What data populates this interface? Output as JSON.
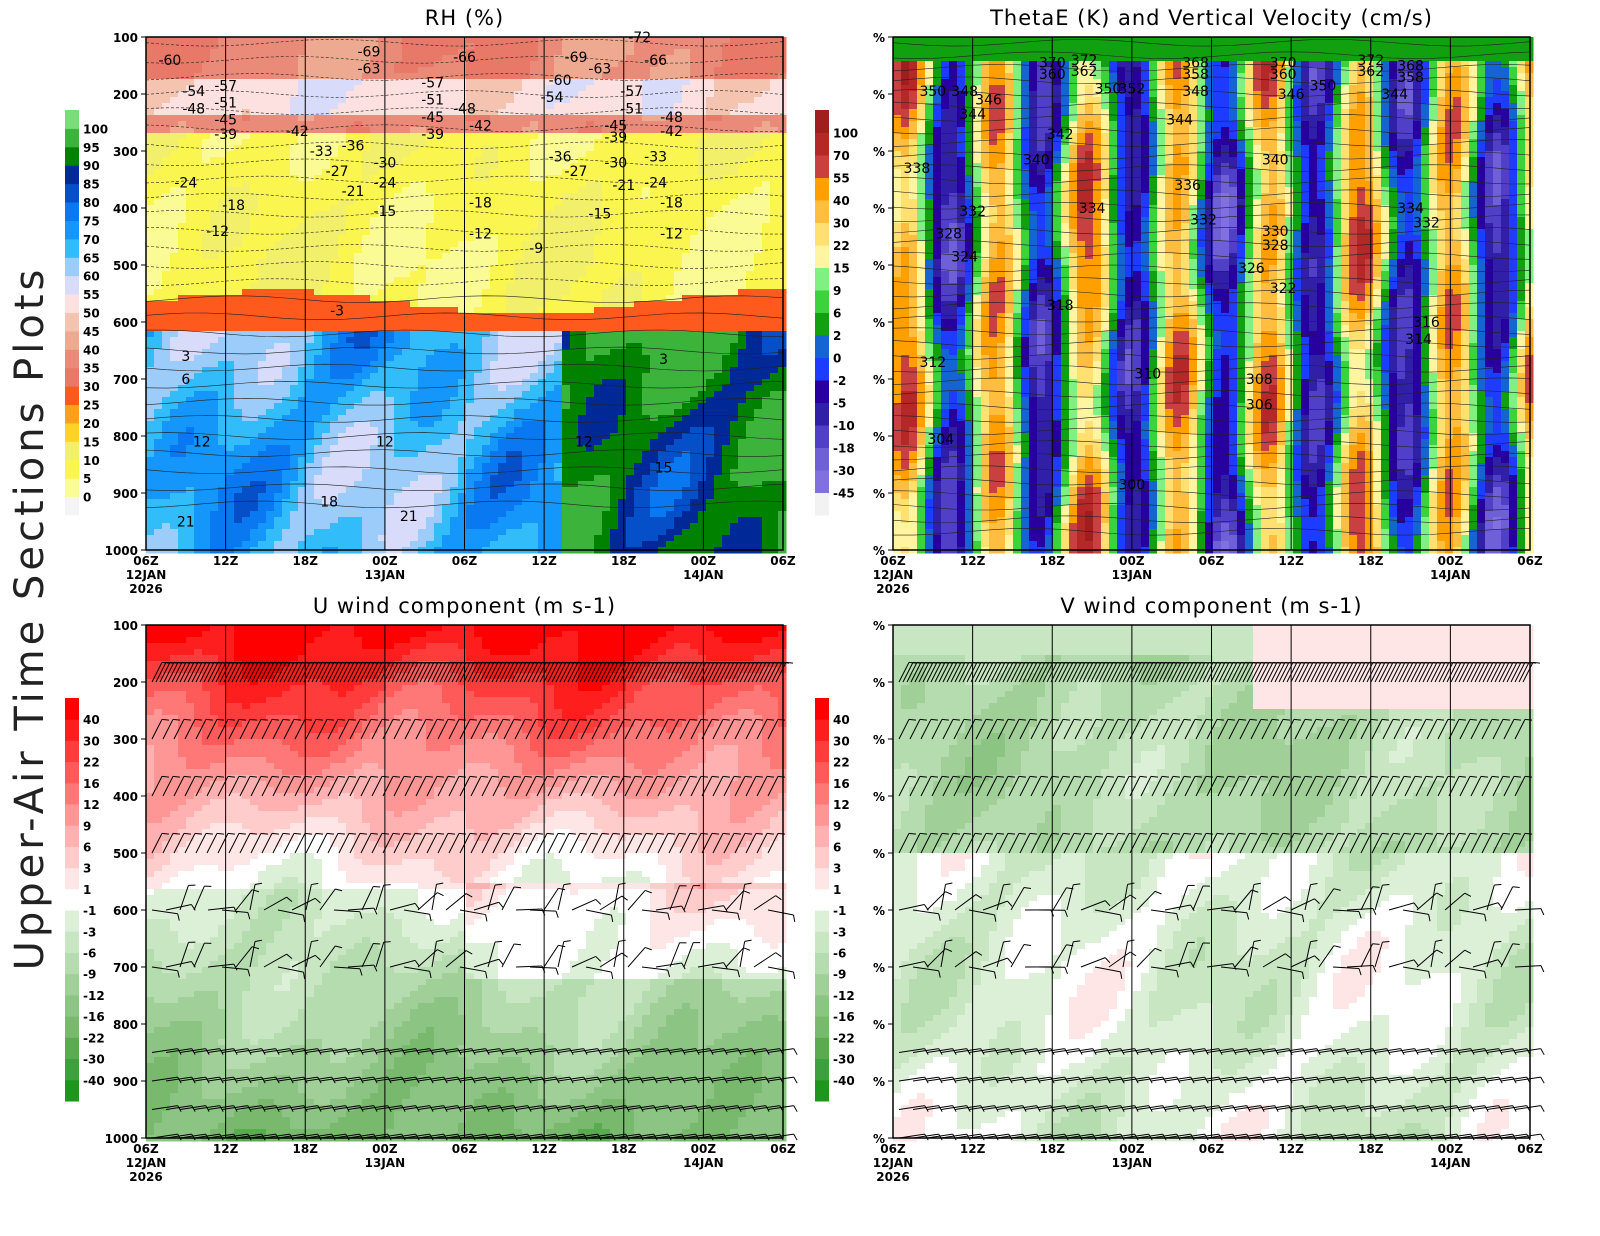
{
  "side_title": "Upper-Air Time Sections Plots",
  "chart_data": [
    {
      "type": "heatmap",
      "title": "RH (%)",
      "ylim": [
        1000,
        100
      ],
      "yticks": [
        "100",
        "200",
        "300",
        "400",
        "500",
        "600",
        "700",
        "800",
        "900",
        "1000"
      ],
      "xticks": [
        "06Z",
        "12Z",
        "18Z",
        "00Z",
        "06Z",
        "12Z",
        "18Z",
        "00Z",
        "06Z"
      ],
      "xsub": [
        {
          "i": 0,
          "lines": [
            "12JAN",
            "2026"
          ]
        },
        {
          "i": 3,
          "lines": [
            "13JAN"
          ]
        },
        {
          "i": 7,
          "lines": [
            "14JAN"
          ]
        }
      ],
      "colorbar": {
        "labels": [
          "0",
          "5",
          "10",
          "15",
          "20",
          "25",
          "30",
          "35",
          "40",
          "45",
          "50",
          "55",
          "60",
          "65",
          "70",
          "75",
          "80",
          "85",
          "90",
          "95",
          "100"
        ],
        "colors": [
          "#f4f4f4",
          "#fbfb96",
          "#fbf550",
          "#f2ef6a",
          "#ffd22a",
          "#ffa01c",
          "#ff5a1e",
          "#e87868",
          "#ea8a78",
          "#edaa90",
          "#f4c4b0",
          "#fde0e0",
          "#d8dcfa",
          "#9ccdfa",
          "#32bdfa",
          "#1496fa",
          "#0a78f0",
          "#0550c8",
          "#002896",
          "#008200",
          "#3cb43c",
          "#78dc78"
        ]
      },
      "contour_labels": [
        {
          "t": 0.3,
          "p": 140,
          "v": "-60"
        },
        {
          "t": 0.6,
          "p": 195,
          "v": "-54"
        },
        {
          "t": 0.6,
          "p": 225,
          "v": "-48"
        },
        {
          "t": 1.0,
          "p": 185,
          "v": "-57"
        },
        {
          "t": 1.0,
          "p": 215,
          "v": "-51"
        },
        {
          "t": 1.0,
          "p": 245,
          "v": "-45"
        },
        {
          "t": 1.0,
          "p": 270,
          "v": "-39"
        },
        {
          "t": 1.9,
          "p": 265,
          "v": "-42"
        },
        {
          "t": 2.8,
          "p": 125,
          "v": "-69"
        },
        {
          "t": 2.8,
          "p": 155,
          "v": "-63"
        },
        {
          "t": 2.6,
          "p": 290,
          "v": "-36"
        },
        {
          "t": 2.2,
          "p": 300,
          "v": "-33"
        },
        {
          "t": 2.4,
          "p": 335,
          "v": "-27"
        },
        {
          "t": 2.6,
          "p": 370,
          "v": "-21"
        },
        {
          "t": 3.0,
          "p": 320,
          "v": "-30"
        },
        {
          "t": 3.0,
          "p": 355,
          "v": "-24"
        },
        {
          "t": 3.0,
          "p": 405,
          "v": "-15"
        },
        {
          "t": 3.6,
          "p": 180,
          "v": "-57"
        },
        {
          "t": 3.6,
          "p": 210,
          "v": "-51"
        },
        {
          "t": 3.6,
          "p": 240,
          "v": "-45"
        },
        {
          "t": 3.6,
          "p": 270,
          "v": "-39"
        },
        {
          "t": 4.0,
          "p": 135,
          "v": "-66"
        },
        {
          "t": 4.0,
          "p": 225,
          "v": "-48"
        },
        {
          "t": 4.2,
          "p": 255,
          "v": "-42"
        },
        {
          "t": 4.2,
          "p": 390,
          "v": "-18"
        },
        {
          "t": 4.2,
          "p": 445,
          "v": "-12"
        },
        {
          "t": 4.9,
          "p": 470,
          "v": "-9"
        },
        {
          "t": 5.1,
          "p": 205,
          "v": "-54"
        },
        {
          "t": 5.2,
          "p": 175,
          "v": "-60"
        },
        {
          "t": 5.2,
          "p": 310,
          "v": "-36"
        },
        {
          "t": 5.4,
          "p": 135,
          "v": "-69"
        },
        {
          "t": 5.4,
          "p": 335,
          "v": "-27"
        },
        {
          "t": 5.7,
          "p": 155,
          "v": "-63"
        },
        {
          "t": 5.7,
          "p": 410,
          "v": "-15"
        },
        {
          "t": 6.1,
          "p": 195,
          "v": "-57"
        },
        {
          "t": 6.1,
          "p": 225,
          "v": "-51"
        },
        {
          "t": 5.9,
          "p": 255,
          "v": "-45"
        },
        {
          "t": 5.9,
          "p": 275,
          "v": "-39"
        },
        {
          "t": 5.9,
          "p": 320,
          "v": "-30"
        },
        {
          "t": 6.0,
          "p": 360,
          "v": "-21"
        },
        {
          "t": 6.4,
          "p": 140,
          "v": "-66"
        },
        {
          "t": 6.4,
          "p": 310,
          "v": "-33"
        },
        {
          "t": 6.4,
          "p": 355,
          "v": "-24"
        },
        {
          "t": 6.6,
          "p": 240,
          "v": "-48"
        },
        {
          "t": 6.6,
          "p": 265,
          "v": "-42"
        },
        {
          "t": 6.6,
          "p": 390,
          "v": "-18"
        },
        {
          "t": 6.6,
          "p": 445,
          "v": "-12"
        },
        {
          "t": 6.2,
          "p": 100,
          "v": "-72"
        },
        {
          "t": 0.5,
          "p": 355,
          "v": "-24"
        },
        {
          "t": 1.1,
          "p": 395,
          "v": "-18"
        },
        {
          "t": 0.9,
          "p": 440,
          "v": "-12"
        },
        {
          "t": 2.4,
          "p": 580,
          "v": "-3"
        },
        {
          "t": 0.5,
          "p": 660,
          "v": "3"
        },
        {
          "t": 0.5,
          "p": 700,
          "v": "6"
        },
        {
          "t": 0.7,
          "p": 810,
          "v": "12"
        },
        {
          "t": 3.0,
          "p": 810,
          "v": "12"
        },
        {
          "t": 5.5,
          "p": 810,
          "v": "12"
        },
        {
          "t": 6.5,
          "p": 665,
          "v": "3"
        },
        {
          "t": 6.5,
          "p": 855,
          "v": "15"
        },
        {
          "t": 2.3,
          "p": 915,
          "v": "18"
        },
        {
          "t": 0.5,
          "p": 950,
          "v": "21"
        },
        {
          "t": 3.3,
          "p": 940,
          "v": "21"
        }
      ]
    },
    {
      "type": "heatmap",
      "title": "ThetaE (K) and Vertical Velocity (cm/s)",
      "ylim": [
        1000,
        100
      ],
      "yticks": [
        "%",
        "%",
        "%",
        "%",
        "%",
        "%",
        "%",
        "%",
        "%",
        "%"
      ],
      "xticks": [
        "06Z",
        "12Z",
        "18Z",
        "00Z",
        "06Z",
        "12Z",
        "18Z",
        "00Z",
        "06Z"
      ],
      "xsub": [
        {
          "i": 0,
          "lines": [
            "12JAN",
            "2026"
          ]
        },
        {
          "i": 3,
          "lines": [
            "13JAN"
          ]
        },
        {
          "i": 7,
          "lines": [
            "14JAN"
          ]
        }
      ],
      "colorbar": {
        "labels": [
          "-45",
          "-30",
          "-18",
          "-10",
          "-5",
          "-2",
          "0",
          "2",
          "6",
          "9",
          "15",
          "22",
          "30",
          "40",
          "55",
          "70",
          "100"
        ],
        "colors": [
          "#f2f2f2",
          "#8070e0",
          "#7060d8",
          "#5040c8",
          "#3020a8",
          "#2800a0",
          "#1e3cff",
          "#1464d2",
          "#10a010",
          "#3cd23c",
          "#80f080",
          "#fff5a0",
          "#ffe070",
          "#ffbe40",
          "#ffa000",
          "#c84040",
          "#b42828",
          "#a01e1e"
        ]
      },
      "contour_labels": [
        {
          "t": 0.5,
          "p": 195,
          "v": "350"
        },
        {
          "t": 0.9,
          "p": 195,
          "v": "348"
        },
        {
          "t": 1.2,
          "p": 210,
          "v": "346"
        },
        {
          "t": 1.0,
          "p": 235,
          "v": "344"
        },
        {
          "t": 0.3,
          "p": 330,
          "v": "338"
        },
        {
          "t": 1.0,
          "p": 405,
          "v": "332"
        },
        {
          "t": 0.7,
          "p": 445,
          "v": "328"
        },
        {
          "t": 0.9,
          "p": 485,
          "v": "324"
        },
        {
          "t": 1.8,
          "p": 315,
          "v": "340"
        },
        {
          "t": 2.1,
          "p": 270,
          "v": "342"
        },
        {
          "t": 2.0,
          "p": 145,
          "v": "370"
        },
        {
          "t": 2.0,
          "p": 165,
          "v": "360"
        },
        {
          "t": 2.4,
          "p": 140,
          "v": "372"
        },
        {
          "t": 2.4,
          "p": 160,
          "v": "362"
        },
        {
          "t": 2.7,
          "p": 190,
          "v": "350"
        },
        {
          "t": 3.0,
          "p": 190,
          "v": "352"
        },
        {
          "t": 2.5,
          "p": 400,
          "v": "334"
        },
        {
          "t": 2.1,
          "p": 570,
          "v": "318"
        },
        {
          "t": 0.5,
          "p": 670,
          "v": "312"
        },
        {
          "t": 0.6,
          "p": 805,
          "v": "304"
        },
        {
          "t": 3.0,
          "p": 885,
          "v": "300"
        },
        {
          "t": 3.2,
          "p": 690,
          "v": "310"
        },
        {
          "t": 3.8,
          "p": 145,
          "v": "368"
        },
        {
          "t": 3.8,
          "p": 165,
          "v": "358"
        },
        {
          "t": 3.8,
          "p": 195,
          "v": "348"
        },
        {
          "t": 3.6,
          "p": 245,
          "v": "344"
        },
        {
          "t": 3.7,
          "p": 360,
          "v": "336"
        },
        {
          "t": 3.9,
          "p": 420,
          "v": "332"
        },
        {
          "t": 4.9,
          "p": 145,
          "v": "370"
        },
        {
          "t": 4.9,
          "p": 165,
          "v": "360"
        },
        {
          "t": 5.0,
          "p": 200,
          "v": "346"
        },
        {
          "t": 5.4,
          "p": 185,
          "v": "350"
        },
        {
          "t": 4.8,
          "p": 315,
          "v": "340"
        },
        {
          "t": 4.8,
          "p": 440,
          "v": "330"
        },
        {
          "t": 4.8,
          "p": 465,
          "v": "328"
        },
        {
          "t": 4.5,
          "p": 505,
          "v": "326"
        },
        {
          "t": 4.9,
          "p": 540,
          "v": "322"
        },
        {
          "t": 4.6,
          "p": 700,
          "v": "308"
        },
        {
          "t": 4.6,
          "p": 745,
          "v": "306"
        },
        {
          "t": 6.0,
          "p": 140,
          "v": "372"
        },
        {
          "t": 6.0,
          "p": 160,
          "v": "362"
        },
        {
          "t": 6.5,
          "p": 150,
          "v": "368"
        },
        {
          "t": 6.5,
          "p": 170,
          "v": "358"
        },
        {
          "t": 6.3,
          "p": 200,
          "v": "344"
        },
        {
          "t": 6.5,
          "p": 400,
          "v": "334"
        },
        {
          "t": 6.7,
          "p": 425,
          "v": "332"
        },
        {
          "t": 6.7,
          "p": 600,
          "v": "316"
        },
        {
          "t": 6.6,
          "p": 630,
          "v": "314"
        }
      ]
    },
    {
      "type": "heatmap",
      "title": "U wind component (m s-1)",
      "ylim": [
        1000,
        100
      ],
      "yticks": [
        "100",
        "200",
        "300",
        "400",
        "500",
        "600",
        "700",
        "800",
        "900",
        "1000"
      ],
      "xticks": [
        "06Z",
        "12Z",
        "18Z",
        "00Z",
        "06Z",
        "12Z",
        "18Z",
        "00Z",
        "06Z"
      ],
      "xsub": [
        {
          "i": 0,
          "lines": [
            "12JAN",
            "2026"
          ]
        },
        {
          "i": 3,
          "lines": [
            "13JAN"
          ]
        },
        {
          "i": 7,
          "lines": [
            "14JAN"
          ]
        }
      ],
      "colorbar": {
        "labels": [
          "-40",
          "-30",
          "-22",
          "-16",
          "-12",
          "-9",
          "-6",
          "-3",
          "-1",
          "1",
          "3",
          "6",
          "9",
          "12",
          "16",
          "22",
          "30",
          "40"
        ],
        "colors": [
          "#1e961e",
          "#3ca03c",
          "#5aaa50",
          "#78b96e",
          "#8cc484",
          "#a0d098",
          "#b4dcae",
          "#c8e6c2",
          "#dcf0d8",
          "#ffffff",
          "#ffe6e6",
          "#ffcccc",
          "#ffb0b0",
          "#ff9696",
          "#ff7878",
          "#ff5a5a",
          "#ff3c3c",
          "#ff1e1e",
          "#ff0000"
        ]
      },
      "barb_levels": [
        200,
        300,
        400,
        500,
        600,
        700,
        850,
        900,
        950,
        1000
      ]
    },
    {
      "type": "heatmap",
      "title": "V wind component (m s-1)",
      "ylim": [
        1000,
        100
      ],
      "yticks": [
        "%",
        "%",
        "%",
        "%",
        "%",
        "%",
        "%",
        "%",
        "%",
        "%"
      ],
      "xticks": [
        "06Z",
        "12Z",
        "18Z",
        "00Z",
        "06Z",
        "12Z",
        "18Z",
        "00Z",
        "06Z"
      ],
      "xsub": [
        {
          "i": 0,
          "lines": [
            "12JAN",
            "2026"
          ]
        },
        {
          "i": 3,
          "lines": [
            "13JAN"
          ]
        },
        {
          "i": 7,
          "lines": [
            "14JAN"
          ]
        }
      ],
      "colorbar": {
        "labels": [
          "-40",
          "-30",
          "-22",
          "-16",
          "-12",
          "-9",
          "-6",
          "-3",
          "-1",
          "1",
          "3",
          "6",
          "9",
          "12",
          "16",
          "22",
          "30",
          "40"
        ],
        "colors": [
          "#1e961e",
          "#3ca03c",
          "#5aaa50",
          "#78b96e",
          "#8cc484",
          "#a0d098",
          "#b4dcae",
          "#c8e6c2",
          "#dcf0d8",
          "#ffffff",
          "#ffe6e6",
          "#ffcccc",
          "#ffb0b0",
          "#ff9696",
          "#ff7878",
          "#ff5a5a",
          "#ff3c3c",
          "#ff1e1e",
          "#ff0000"
        ]
      },
      "barb_levels": [
        200,
        300,
        400,
        500,
        600,
        700,
        850,
        900,
        950,
        1000
      ]
    }
  ]
}
